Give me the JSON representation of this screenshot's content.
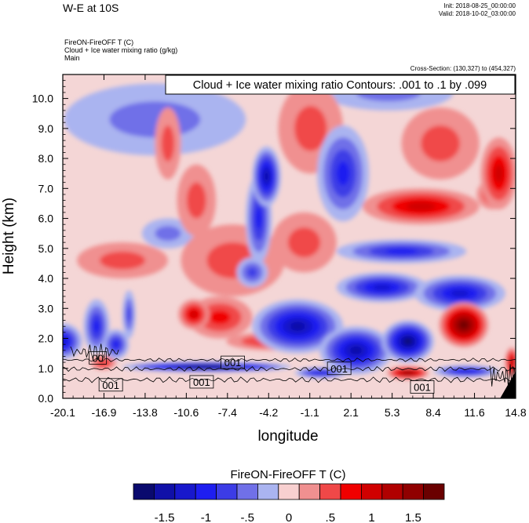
{
  "header": {
    "title": "W-E at 10S",
    "init": "Init: 2018-08-25_00:00:00",
    "valid": "Valid: 2018-10-02_03:00:00",
    "field_lines": [
      "FireON-FireOFF T   (C)",
      "Cloud + Ice water mixing ratio   (g/kg)",
      "Main"
    ],
    "cross_section": "Cross-Section: (130,327) to (454,327)"
  },
  "chart_data": {
    "type": "heatmap",
    "title": "FireON-FireOFF T  (C)",
    "overlay": "Cloud + Ice water mixing ratio Contours: .001 to .1 by .099",
    "xlabel": "longitude",
    "ylabel": "Height (km)",
    "xlim": [
      -20.1,
      14.8
    ],
    "ylim": [
      0,
      10.8
    ],
    "x_ticks": [
      "-20.1",
      "-16.9",
      "-13.8",
      "-10.6",
      "-7.4",
      "-4.2",
      "-1.1",
      "2.1",
      "5.3",
      "8.4",
      "11.6",
      "14.8"
    ],
    "y_ticks": [
      {
        "value": 0,
        "label": "0.0"
      },
      {
        "value": 1,
        "label": "1.0"
      },
      {
        "value": 2,
        "label": "2.0"
      },
      {
        "value": 3,
        "label": "3.0"
      },
      {
        "value": 4,
        "label": "4.0"
      },
      {
        "value": 5,
        "label": "5.0"
      },
      {
        "value": 6,
        "label": "6.0"
      },
      {
        "value": 7,
        "label": "7.0"
      },
      {
        "value": 8,
        "label": "8.0"
      },
      {
        "value": 9,
        "label": "9.0"
      },
      {
        "value": 10,
        "label": "10.0"
      }
    ],
    "colorbar": {
      "label": "FireON-FireOFF T  (C)",
      "levels": [
        -1.75,
        -1.5,
        -1.25,
        -1,
        -0.75,
        -0.5,
        -0.25,
        0,
        0.25,
        0.5,
        0.75,
        1,
        1.25,
        1.5,
        1.75
      ],
      "tick_labels": [
        {
          "value": -1.5,
          "label": "-1.5"
        },
        {
          "value": -1,
          "label": "-1"
        },
        {
          "value": -0.5,
          "label": "-.5"
        },
        {
          "value": 0,
          "label": "0"
        },
        {
          "value": 0.5,
          "label": ".5"
        },
        {
          "value": 1,
          "label": "1"
        },
        {
          "value": 1.5,
          "label": "1.5"
        }
      ],
      "colors": [
        "#0a0a6e",
        "#1010a8",
        "#1818cc",
        "#1e1ef0",
        "#3c3ce6",
        "#7070e8",
        "#aab4f0",
        "#f8d0d0",
        "#f09090",
        "#f04848",
        "#f00000",
        "#d00000",
        "#b00000",
        "#900000",
        "#6a0000"
      ]
    },
    "contour_labels": [
      {
        "text": "00",
        "x": -17.4,
        "y": 1.35
      },
      {
        "text": "001",
        "x": -7.0,
        "y": 1.2
      },
      {
        "text": "001",
        "x": 1.2,
        "y": 1.0
      },
      {
        "text": "001",
        "x": -9.4,
        "y": 0.55
      },
      {
        "text": "001",
        "x": -16.4,
        "y": 0.45
      },
      {
        "text": "001",
        "x": 7.6,
        "y": 0.38
      }
    ],
    "features": [
      {
        "kind": "cold",
        "x": -20.1,
        "y": 1.9,
        "rx": 1.5,
        "ry": 0.6,
        "v": -1.2
      },
      {
        "kind": "cold",
        "x": -17.5,
        "y": 2.4,
        "rx": 1.0,
        "ry": 0.9,
        "v": -0.9
      },
      {
        "kind": "cold",
        "x": -16.0,
        "y": 1.8,
        "rx": 1.0,
        "ry": 0.5,
        "v": -1.0
      },
      {
        "kind": "cold",
        "x": -15.0,
        "y": 2.8,
        "rx": 0.5,
        "ry": 0.8,
        "v": -0.7
      },
      {
        "kind": "cold",
        "x": -9.0,
        "y": 1.05,
        "rx": 6.5,
        "ry": 0.17,
        "v": -1.9
      },
      {
        "kind": "cold",
        "x": -2.0,
        "y": 2.4,
        "rx": 3.5,
        "ry": 0.9,
        "v": -1.6
      },
      {
        "kind": "cold",
        "x": 2.5,
        "y": 1.6,
        "rx": 2.8,
        "ry": 0.8,
        "v": -1.6
      },
      {
        "kind": "cold",
        "x": 6.5,
        "y": 1.9,
        "rx": 2.0,
        "ry": 0.7,
        "v": -1.8
      },
      {
        "kind": "cold",
        "x": 4.5,
        "y": 3.7,
        "rx": 3.5,
        "ry": 0.5,
        "v": -1.2
      },
      {
        "kind": "cold",
        "x": 10.5,
        "y": 3.5,
        "rx": 3.5,
        "ry": 0.6,
        "v": -1.2
      },
      {
        "kind": "cold",
        "x": 6.0,
        "y": 4.9,
        "rx": 5.0,
        "ry": 0.4,
        "v": -0.9
      },
      {
        "kind": "cold",
        "x": -4.4,
        "y": 7.4,
        "rx": 1.1,
        "ry": 1.0,
        "v": -1.5
      },
      {
        "kind": "cold",
        "x": -5.0,
        "y": 6.0,
        "rx": 1.0,
        "ry": 1.5,
        "v": -0.9
      },
      {
        "kind": "cold",
        "x": 1.5,
        "y": 7.5,
        "rx": 2.0,
        "ry": 1.6,
        "v": -0.9
      },
      {
        "kind": "cold",
        "x": -5.5,
        "y": 4.2,
        "rx": 1.2,
        "ry": 0.5,
        "v": -0.8
      },
      {
        "kind": "cold",
        "x": -13.0,
        "y": 9.3,
        "rx": 7.0,
        "ry": 1.2,
        "v": -0.45
      },
      {
        "kind": "cold",
        "x": -12.0,
        "y": 5.5,
        "rx": 2.0,
        "ry": 0.5,
        "v": -0.4
      },
      {
        "kind": "cold",
        "x": 5.0,
        "y": 10.2,
        "rx": 5.0,
        "ry": 0.6,
        "v": -0.4
      },
      {
        "kind": "cold",
        "x": -0.2,
        "y": 0.85,
        "rx": 2.0,
        "ry": 0.18,
        "v": -1.3
      },
      {
        "kind": "cold",
        "x": 11.0,
        "y": 0.9,
        "rx": 2.5,
        "ry": 0.2,
        "v": -1.3
      },
      {
        "kind": "warm",
        "x": 10.8,
        "y": 2.45,
        "rx": 1.9,
        "ry": 0.75,
        "v": 1.7
      },
      {
        "kind": "warm",
        "x": 6.5,
        "y": 0.85,
        "rx": 1.6,
        "ry": 0.22,
        "v": 1.6
      },
      {
        "kind": "warm",
        "x": 7.5,
        "y": 6.4,
        "rx": 4.5,
        "ry": 0.6,
        "v": 0.9
      },
      {
        "kind": "warm",
        "x": 13.5,
        "y": 7.5,
        "rx": 1.4,
        "ry": 1.2,
        "v": 1.0
      },
      {
        "kind": "warm",
        "x": 13.0,
        "y": 6.8,
        "rx": 1.2,
        "ry": 0.5,
        "v": 0.8
      },
      {
        "kind": "warm",
        "x": -8.0,
        "y": 2.7,
        "rx": 2.5,
        "ry": 0.7,
        "v": 0.8
      },
      {
        "kind": "warm",
        "x": -10.0,
        "y": 2.8,
        "rx": 1.2,
        "ry": 0.5,
        "v": 0.9
      },
      {
        "kind": "warm",
        "x": -4.0,
        "y": 1.9,
        "rx": 3.5,
        "ry": 0.3,
        "v": 0.8
      },
      {
        "kind": "warm",
        "x": -15.5,
        "y": 4.6,
        "rx": 3.5,
        "ry": 0.6,
        "v": 0.5
      },
      {
        "kind": "warm",
        "x": -7.0,
        "y": 4.6,
        "rx": 4.0,
        "ry": 1.2,
        "v": 0.45
      },
      {
        "kind": "warm",
        "x": -9.8,
        "y": 6.6,
        "rx": 1.5,
        "ry": 1.2,
        "v": 0.5
      },
      {
        "kind": "warm",
        "x": -12.0,
        "y": 8.5,
        "rx": 1.0,
        "ry": 1.2,
        "v": 0.5
      },
      {
        "kind": "warm",
        "x": -1.0,
        "y": 9.0,
        "rx": 2.5,
        "ry": 1.5,
        "v": 0.45
      },
      {
        "kind": "warm",
        "x": 9.0,
        "y": 8.5,
        "rx": 3.0,
        "ry": 1.2,
        "v": 0.4
      },
      {
        "kind": "warm",
        "x": -17.0,
        "y": 1.2,
        "rx": 1.0,
        "ry": 0.25,
        "v": 0.7
      },
      {
        "kind": "warm",
        "x": 14.5,
        "y": 1.2,
        "rx": 0.5,
        "ry": 0.5,
        "v": 1.2
      },
      {
        "kind": "warm",
        "x": -1.5,
        "y": 5.2,
        "rx": 2.5,
        "ry": 1.0,
        "v": 0.4
      }
    ]
  }
}
